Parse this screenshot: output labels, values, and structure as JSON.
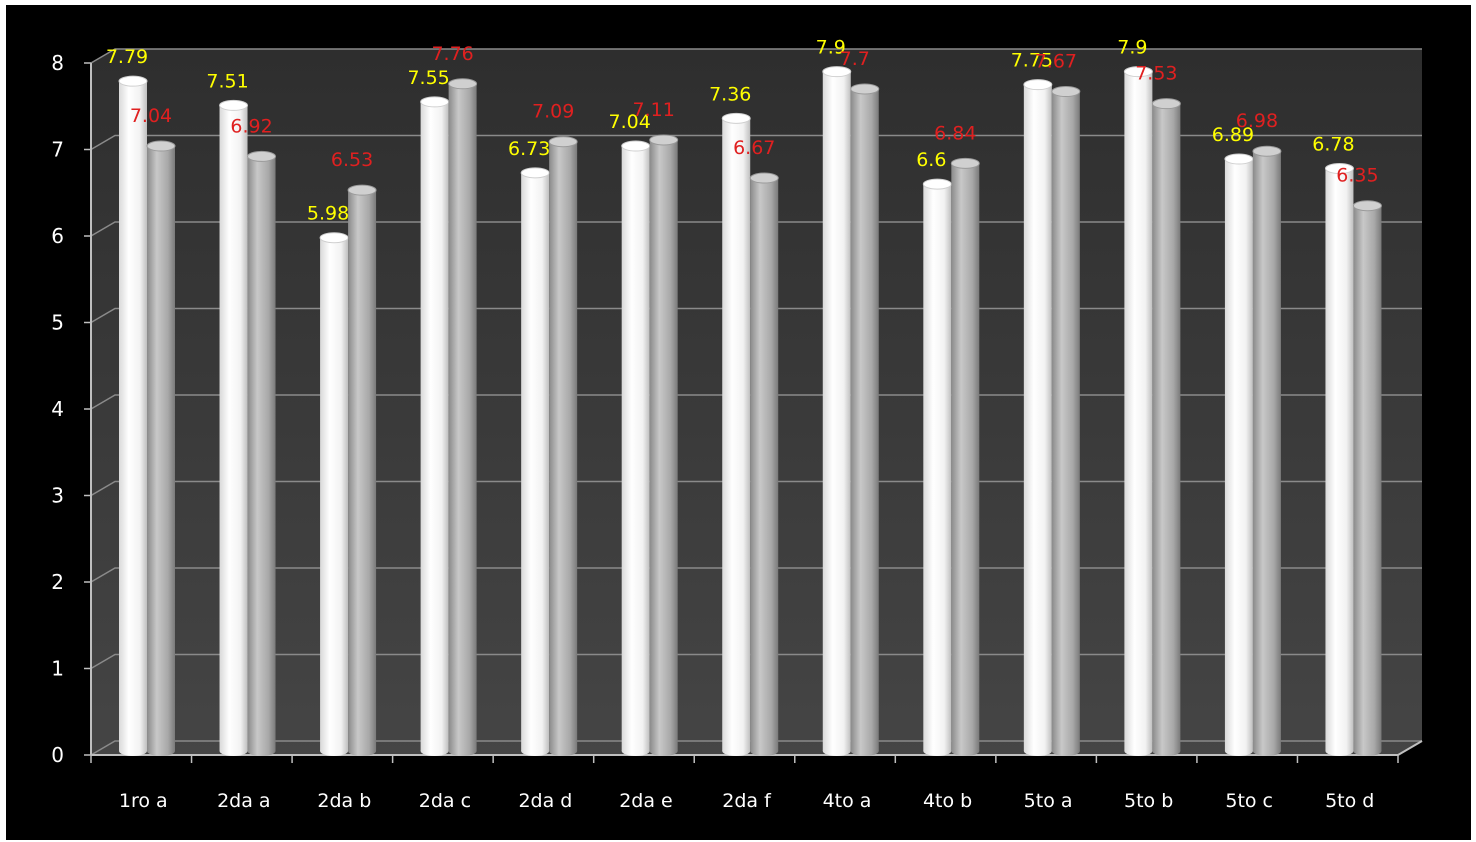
{
  "chart_data": {
    "type": "bar",
    "categories": [
      "1ro a",
      "2da a",
      "2da b",
      "2da c",
      "2da d",
      "2da e",
      "2da f",
      "4to a",
      "4to b",
      "5to a",
      "5to b",
      "5to c",
      "5to d"
    ],
    "series": [
      {
        "values": [
          7.79,
          7.51,
          5.98,
          7.55,
          6.73,
          7.04,
          7.36,
          7.9,
          6.6,
          7.75,
          7.9,
          6.89,
          6.78
        ],
        "bar_color": "#ffffff",
        "label_color": "#ffff00"
      },
      {
        "values": [
          7.04,
          6.92,
          6.53,
          7.76,
          7.09,
          7.11,
          6.67,
          7.7,
          6.84,
          7.67,
          7.53,
          6.98,
          6.35
        ],
        "bar_color": "#a6a6a6",
        "label_color": "#e02020"
      }
    ],
    "yticks": [
      "0",
      "1",
      "2",
      "3",
      "4",
      "5",
      "6",
      "7",
      "8"
    ],
    "ylim": [
      0,
      8
    ],
    "grid": true,
    "legend": "none",
    "title": "",
    "xlabel": "",
    "ylabel": "",
    "colors": {
      "background": "#000000",
      "plot_wall": "#3a3a3a",
      "gridline": "#8a8a8a",
      "axis_text": "#ffffff"
    }
  }
}
